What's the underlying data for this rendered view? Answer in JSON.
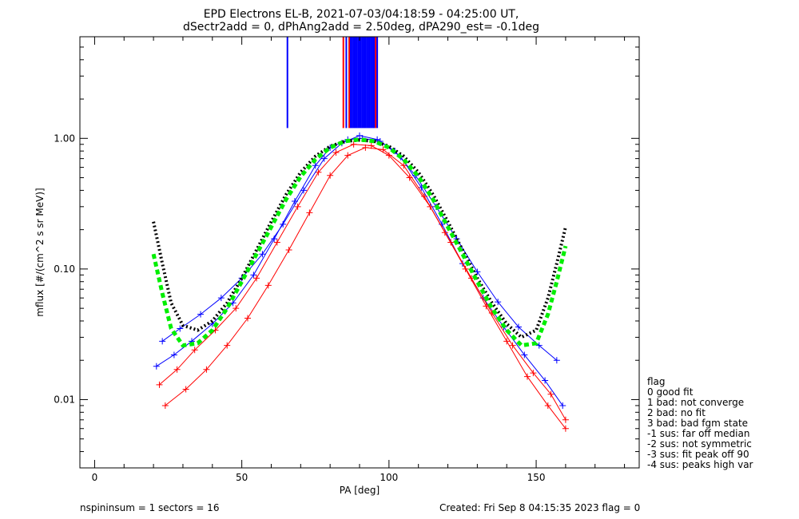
{
  "chart_data": {
    "type": "scatter",
    "title": "EPD Electrons EL-B, 2021-07-03/04:18:59 - 04:25:00 UT,",
    "subtitle": "dSectr2add = 0, dPhAng2add = 2.50deg, dPA290_est=  -0.1deg",
    "xlabel": "PA [deg]",
    "ylabel": "mflux [#/(cm^2 s sr MeV)]",
    "xlim": [
      -5,
      185
    ],
    "ylim": [
      0.003,
      6
    ],
    "yscale": "log",
    "x_ticks": [
      0,
      50,
      100,
      150
    ],
    "x_tick_labels": [
      "0",
      "50",
      "100",
      "150"
    ],
    "y_ticks": [
      0.01,
      0.1,
      1
    ],
    "y_tick_labels": [
      "0.01",
      "0.10",
      "1.00"
    ],
    "grid": false,
    "legend_title": "flag",
    "legend_placement": "outside-right",
    "legend": [
      " 0 good fit",
      " 1 bad: not converge",
      " 2 bad: no fit",
      " 3 bad: bad fgm state",
      "-1 sus: far off median",
      "-2 sus: not symmetric",
      "-3 sus: fit peak off 90",
      "-4 sus: peaks high var"
    ],
    "footer_left": "nspininsum =  1  sectors = 16",
    "footer_right": "Created: Fri Sep  8 04:15:35 2023   flag = 0",
    "colors": {
      "series_red": "#ff0000",
      "series_blue": "#0000ff",
      "fit_black": "#000000",
      "fit_green": "#00ee00",
      "axes": "#000000"
    },
    "series": [
      {
        "color": "#0000ff",
        "style": "line+plus",
        "x": [
          21,
          27,
          33,
          40,
          47,
          54,
          61,
          68,
          75,
          80,
          86,
          91,
          97,
          104,
          111,
          118,
          125,
          132,
          139,
          146,
          153,
          159
        ],
        "y": [
          0.018,
          0.022,
          0.028,
          0.038,
          0.055,
          0.09,
          0.17,
          0.33,
          0.62,
          0.85,
          0.98,
          1.0,
          0.95,
          0.72,
          0.42,
          0.22,
          0.11,
          0.06,
          0.036,
          0.022,
          0.014,
          0.009
        ]
      },
      {
        "color": "#ff0000",
        "style": "line+plus",
        "x": [
          22,
          28,
          34,
          41,
          48,
          55,
          62,
          69,
          76,
          82,
          88,
          94,
          100,
          107,
          114,
          121,
          128,
          135,
          142,
          149,
          155,
          160
        ],
        "y": [
          0.013,
          0.017,
          0.024,
          0.034,
          0.05,
          0.085,
          0.16,
          0.3,
          0.55,
          0.78,
          0.9,
          0.88,
          0.74,
          0.5,
          0.3,
          0.16,
          0.085,
          0.046,
          0.026,
          0.016,
          0.011,
          0.007
        ]
      },
      {
        "color": "#0000ff",
        "style": "line+plus",
        "x": [
          23,
          29,
          36,
          43,
          50,
          57,
          64,
          71,
          78,
          84,
          90,
          96,
          102,
          109,
          116,
          123,
          130,
          137,
          144,
          151,
          157
        ],
        "y": [
          0.028,
          0.035,
          0.045,
          0.06,
          0.085,
          0.13,
          0.22,
          0.4,
          0.7,
          0.92,
          1.05,
          0.98,
          0.8,
          0.52,
          0.3,
          0.17,
          0.095,
          0.056,
          0.036,
          0.026,
          0.02
        ]
      },
      {
        "color": "#ff0000",
        "style": "line+plus",
        "x": [
          24,
          31,
          38,
          45,
          52,
          59,
          66,
          73,
          80,
          86,
          92,
          98,
          105,
          112,
          119,
          126,
          133,
          140,
          147,
          154,
          160
        ],
        "y": [
          0.009,
          0.012,
          0.017,
          0.026,
          0.042,
          0.075,
          0.14,
          0.27,
          0.52,
          0.74,
          0.85,
          0.82,
          0.62,
          0.36,
          0.19,
          0.1,
          0.052,
          0.028,
          0.015,
          0.009,
          0.006
        ]
      }
    ],
    "fit_curves": [
      {
        "color": "#000000",
        "style": "dotted",
        "x": [
          20,
          23,
          26,
          30,
          35,
          40,
          45,
          50,
          55,
          60,
          65,
          70,
          75,
          80,
          85,
          90,
          95,
          100,
          105,
          110,
          115,
          120,
          125,
          130,
          135,
          140,
          145,
          150,
          154,
          157,
          160
        ],
        "y": [
          0.23,
          0.11,
          0.055,
          0.037,
          0.034,
          0.04,
          0.055,
          0.085,
          0.14,
          0.23,
          0.37,
          0.55,
          0.73,
          0.87,
          0.95,
          0.97,
          0.95,
          0.87,
          0.73,
          0.55,
          0.37,
          0.23,
          0.14,
          0.085,
          0.055,
          0.038,
          0.03,
          0.034,
          0.06,
          0.11,
          0.21
        ]
      },
      {
        "color": "#00ee00",
        "style": "dashed",
        "x": [
          20,
          23,
          26,
          30,
          35,
          40,
          45,
          50,
          55,
          60,
          65,
          70,
          75,
          80,
          85,
          90,
          95,
          100,
          105,
          110,
          115,
          120,
          125,
          130,
          135,
          140,
          145,
          150,
          154,
          157,
          160
        ],
        "y": [
          0.13,
          0.065,
          0.035,
          0.026,
          0.027,
          0.034,
          0.05,
          0.08,
          0.13,
          0.21,
          0.34,
          0.51,
          0.69,
          0.85,
          0.95,
          0.98,
          0.95,
          0.85,
          0.69,
          0.51,
          0.34,
          0.21,
          0.13,
          0.08,
          0.05,
          0.034,
          0.026,
          0.027,
          0.045,
          0.08,
          0.15
        ]
      }
    ],
    "vertical_spikes": [
      {
        "color": "#0000ff",
        "x": 65.5,
        "y_from": 1.2,
        "y_to": 6
      },
      {
        "color": "#ff0000",
        "x": 84.5,
        "y_from": 1.2,
        "y_to": 6
      },
      {
        "color": "#0000ff",
        "x": 85.5,
        "y_from": 1.2,
        "y_to": 6
      },
      {
        "color": "#ff0000",
        "x": 86.5,
        "y_from": 1.2,
        "y_to": 6
      },
      {
        "color": "#0000ff",
        "x": 87,
        "y_from": 1.2,
        "y_to": 6
      },
      {
        "color": "#0000ff",
        "x": 87.5,
        "y_from": 1.2,
        "y_to": 6
      },
      {
        "color": "#0000ff",
        "x": 88,
        "y_from": 1.2,
        "y_to": 6
      },
      {
        "color": "#0000ff",
        "x": 88.5,
        "y_from": 1.2,
        "y_to": 6
      },
      {
        "color": "#0000ff",
        "x": 89,
        "y_from": 1.2,
        "y_to": 6
      },
      {
        "color": "#0000ff",
        "x": 89.5,
        "y_from": 1.2,
        "y_to": 6
      },
      {
        "color": "#0000ff",
        "x": 90,
        "y_from": 1.2,
        "y_to": 6
      },
      {
        "color": "#0000ff",
        "x": 90.5,
        "y_from": 1.2,
        "y_to": 6
      },
      {
        "color": "#0000ff",
        "x": 91,
        "y_from": 1.2,
        "y_to": 6
      },
      {
        "color": "#0000ff",
        "x": 91.5,
        "y_from": 1.2,
        "y_to": 6
      },
      {
        "color": "#0000ff",
        "x": 92,
        "y_from": 1.2,
        "y_to": 6
      },
      {
        "color": "#0000ff",
        "x": 92.5,
        "y_from": 1.2,
        "y_to": 6
      },
      {
        "color": "#0000ff",
        "x": 93,
        "y_from": 1.2,
        "y_to": 6
      },
      {
        "color": "#0000ff",
        "x": 93.5,
        "y_from": 1.2,
        "y_to": 6
      },
      {
        "color": "#0000ff",
        "x": 94,
        "y_from": 1.2,
        "y_to": 6
      },
      {
        "color": "#0000ff",
        "x": 94.5,
        "y_from": 1.2,
        "y_to": 6
      },
      {
        "color": "#0000ff",
        "x": 95,
        "y_from": 1.2,
        "y_to": 6
      },
      {
        "color": "#ff0000",
        "x": 95.5,
        "y_from": 1.2,
        "y_to": 6
      },
      {
        "color": "#0000ff",
        "x": 96,
        "y_from": 1.2,
        "y_to": 6
      }
    ]
  }
}
